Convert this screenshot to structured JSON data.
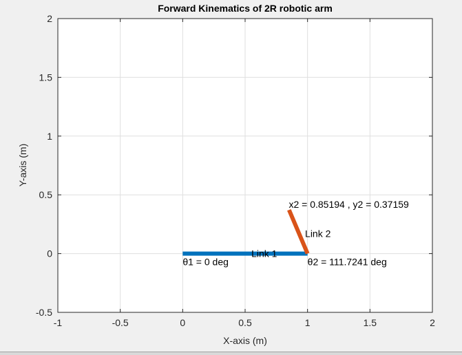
{
  "chart_data": {
    "type": "line",
    "title": "Forward Kinematics of 2R robotic arm",
    "xlabel": "X-axis (m)",
    "ylabel": "Y-axis (m)",
    "xlim": [
      -1,
      2
    ],
    "ylim": [
      -0.5,
      2
    ],
    "xticks": [
      -1,
      -0.5,
      0,
      0.5,
      1,
      1.5,
      2
    ],
    "xtick_labels": [
      "-1",
      "-0.5",
      "0",
      "0.5",
      "1",
      "1.5",
      "2"
    ],
    "yticks": [
      -0.5,
      0,
      0.5,
      1,
      1.5,
      2
    ],
    "ytick_labels": [
      "-0.5",
      "0",
      "0.5",
      "1",
      "1.5",
      "2"
    ],
    "grid": true,
    "series": [
      {
        "name": "Link 1",
        "color": "#0072bd",
        "x": [
          0,
          1
        ],
        "y": [
          0,
          0
        ]
      },
      {
        "name": "Link 2",
        "color": "#d95319",
        "x": [
          1,
          0.85194
        ],
        "y": [
          0,
          0.37159
        ]
      }
    ],
    "annotations": [
      {
        "text": "Link 1",
        "x": 0.55,
        "y": 0.0
      },
      {
        "text": "Link 2",
        "x": 0.98,
        "y": 0.17
      },
      {
        "text": "θ1 = 0 deg",
        "x": 0.0,
        "y": -0.07
      },
      {
        "text": "θ2 = 111.7241 deg",
        "x": 1.0,
        "y": -0.07
      },
      {
        "text": "x2 = 0.85194 , y2 = 0.37159",
        "x": 0.85,
        "y": 0.42
      }
    ]
  }
}
